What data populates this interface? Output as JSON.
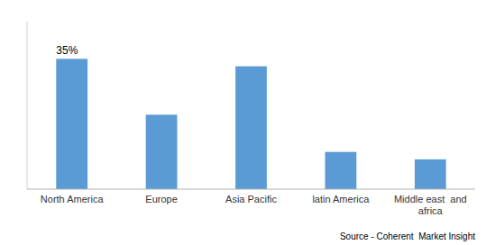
{
  "chart_data": {
    "type": "bar",
    "categories": [
      "North America",
      "Europe",
      "Asia Pacific",
      "latin America",
      "Middle east  and\nafrica"
    ],
    "values": [
      35,
      20,
      33,
      10,
      8
    ],
    "color": "#5B9BD5",
    "ylim": [
      0,
      45
    ],
    "grid": false,
    "tick_labels": "x",
    "annotation": "35%",
    "source": "Source - Coherent  Market Insight"
  }
}
